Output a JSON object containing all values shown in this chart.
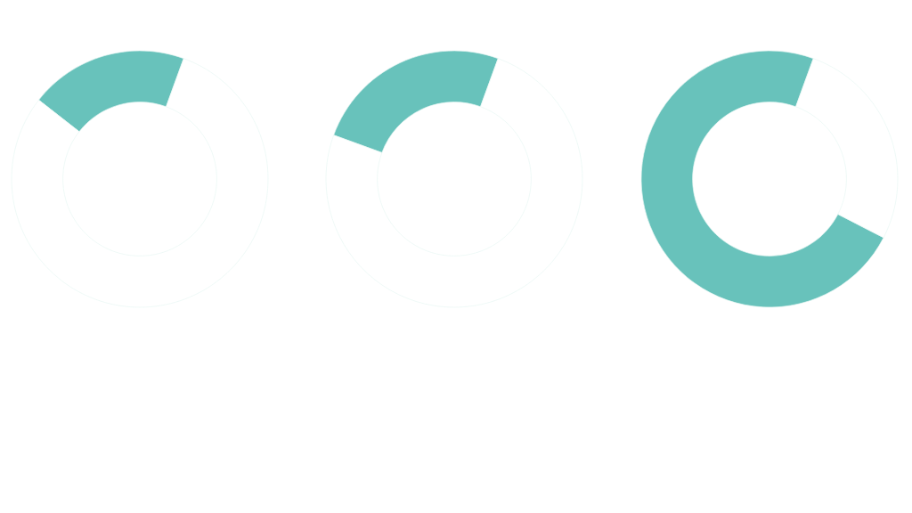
{
  "chart_data": [
    {
      "type": "donut",
      "categories": [
        null,
        null
      ],
      "values": [
        20,
        80
      ],
      "colors": [
        "#68c2bb",
        "#ffffff"
      ]
    },
    {
      "type": "donut",
      "categories": [
        null,
        null
      ],
      "values": [
        25,
        75
      ],
      "colors": [
        "#68c2bb",
        "#ffffff"
      ]
    },
    {
      "type": "donut",
      "categories": [
        null,
        null
      ],
      "values": [
        73,
        27
      ],
      "colors": [
        "#68c2bb",
        "#ffffff"
      ]
    }
  ]
}
